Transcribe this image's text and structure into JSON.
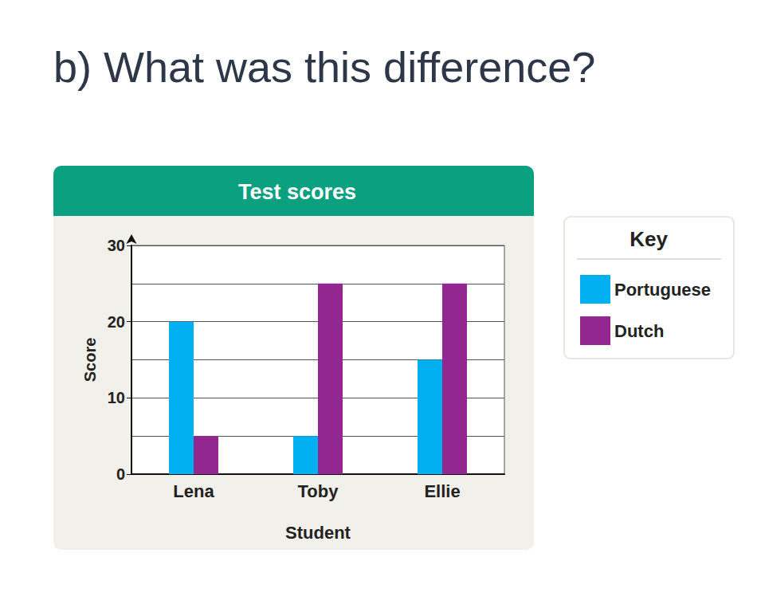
{
  "heading": "b) What was this difference?",
  "chart_data": {
    "type": "bar",
    "title": "Test scores",
    "x_label": "Student",
    "y_label": "Score",
    "categories": [
      "Lena",
      "Toby",
      "Ellie"
    ],
    "series": [
      {
        "name": "Portuguese",
        "color": "#00b0f0",
        "values": [
          20,
          5,
          15
        ]
      },
      {
        "name": "Dutch",
        "color": "#92278f",
        "values": [
          5,
          25,
          25
        ]
      }
    ],
    "ylim": [
      0,
      30
    ],
    "yticks": [
      0,
      10,
      20,
      30
    ],
    "grid": true,
    "legend": "right",
    "legend_title": "Key"
  }
}
